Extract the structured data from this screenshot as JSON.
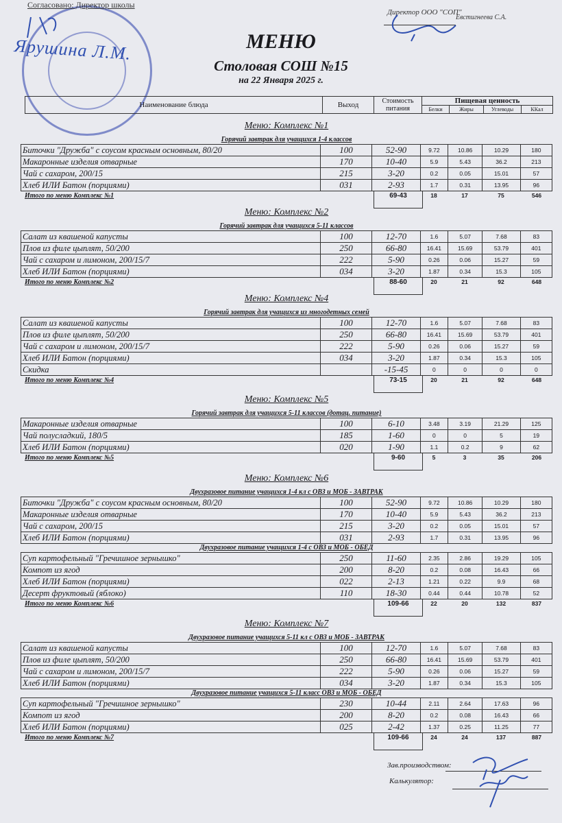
{
  "header": {
    "agreed": "Согласовано: Директор школы",
    "agreed_signature": "Ярушина Л.М.",
    "approved_by": "Директор ООО \"СОП\"",
    "approver_name": "Евстигнеева С.А.",
    "title": "МЕНЮ",
    "subtitle": "Столовая СОШ №15",
    "date": "на 22 Января 2025 г."
  },
  "columns": {
    "name": "Наименование блюда",
    "output": "Выход",
    "cost": "Стоимость питания",
    "nutrition": "Пищевая ценность",
    "protein": "Белки",
    "fat": "Жиры",
    "carbs": "Углеводы",
    "kcal": "ККал"
  },
  "sections": [
    {
      "title": "Меню: Комплекс №1",
      "groups": [
        {
          "subtitle": "Горячий завтрак для учащихся 1-4 классов",
          "rows": [
            [
              "Биточки  \"Дружба\" с соусом красным основным, 80/20",
              "100",
              "52-90",
              "9.72",
              "10.86",
              "10.29",
              "180"
            ],
            [
              "Макаронные изделия отварные",
              "170",
              "10-40",
              "5.9",
              "5.43",
              "36.2",
              "213"
            ],
            [
              "Чай с сахаром, 200/15",
              "215",
              "3-20",
              "0.2",
              "0.05",
              "15.01",
              "57"
            ],
            [
              "Хлеб ИЛИ Батон (порциями)",
              "031",
              "2-93",
              "1.7",
              "0.31",
              "13.95",
              "96"
            ]
          ]
        }
      ],
      "total": {
        "label": "Итого по меню Комплекс №1",
        "cost": "69-43",
        "protein": "18",
        "fat": "17",
        "carbs": "75",
        "kcal": "546"
      }
    },
    {
      "title": "Меню: Комплекс №2",
      "groups": [
        {
          "subtitle": "Горячий завтрак для учащихся 5-11 классов",
          "rows": [
            [
              "Салат из квашеной капусты",
              "100",
              "12-70",
              "1.6",
              "5.07",
              "7.68",
              "83"
            ],
            [
              "Плов из филе цыплят, 50/200",
              "250",
              "66-80",
              "16.41",
              "15.69",
              "53.79",
              "401"
            ],
            [
              "Чай с сахаром и лимоном, 200/15/7",
              "222",
              "5-90",
              "0.26",
              "0.06",
              "15.27",
              "59"
            ],
            [
              "Хлеб ИЛИ Батон (порциями)",
              "034",
              "3-20",
              "1.87",
              "0.34",
              "15.3",
              "105"
            ]
          ]
        }
      ],
      "total": {
        "label": "Итого по меню Комплекс №2",
        "cost": "88-60",
        "protein": "20",
        "fat": "21",
        "carbs": "92",
        "kcal": "648"
      }
    },
    {
      "title": "Меню: Комплекс №4",
      "groups": [
        {
          "subtitle": "Горячий завтрак для учащихся из многодетных семей",
          "rows": [
            [
              "Салат из квашеной капусты",
              "100",
              "12-70",
              "1.6",
              "5.07",
              "7.68",
              "83"
            ],
            [
              "Плов из филе цыплят, 50/200",
              "250",
              "66-80",
              "16.41",
              "15.69",
              "53.79",
              "401"
            ],
            [
              "Чай с сахаром и лимоном, 200/15/7",
              "222",
              "5-90",
              "0.26",
              "0.06",
              "15.27",
              "59"
            ],
            [
              "Хлеб ИЛИ Батон (порциями)",
              "034",
              "3-20",
              "1.87",
              "0.34",
              "15.3",
              "105"
            ],
            [
              "Скидка",
              "",
              "-15-45",
              "0",
              "0",
              "0",
              "0"
            ]
          ]
        }
      ],
      "total": {
        "label": "Итого по меню Комплекс №4",
        "cost": "73-15",
        "protein": "20",
        "fat": "21",
        "carbs": "92",
        "kcal": "648"
      }
    },
    {
      "title": "Меню: Комплекс №5",
      "groups": [
        {
          "subtitle": "Горячий завтрак для учащихся 5-11 классов (дотац. питание)",
          "rows": [
            [
              "Макаронные изделия отварные",
              "100",
              "6-10",
              "3.48",
              "3.19",
              "21.29",
              "125"
            ],
            [
              "Чай полусладкий, 180/5",
              "185",
              "1-60",
              "0",
              "0",
              "5",
              "19"
            ],
            [
              "Хлеб ИЛИ Батон (порциями)",
              "020",
              "1-90",
              "1.1",
              "0.2",
              "9",
              "62"
            ]
          ]
        }
      ],
      "total": {
        "label": "Итого по меню Комплекс №5",
        "cost": "9-60",
        "protein": "5",
        "fat": "3",
        "carbs": "35",
        "kcal": "206"
      }
    },
    {
      "title": "Меню: Комплекс №6",
      "groups": [
        {
          "subtitle": "Двухразовое питание учащихся 1-4 кл с ОВЗ и МОБ - ЗАВТРАК",
          "rows": [
            [
              "Биточки  \"Дружба\" с соусом красным основным, 80/20",
              "100",
              "52-90",
              "9.72",
              "10.86",
              "10.29",
              "180"
            ],
            [
              "Макаронные изделия отварные",
              "170",
              "10-40",
              "5.9",
              "5.43",
              "36.2",
              "213"
            ],
            [
              "Чай с сахаром, 200/15",
              "215",
              "3-20",
              "0.2",
              "0.05",
              "15.01",
              "57"
            ],
            [
              "Хлеб ИЛИ Батон (порциями)",
              "031",
              "2-93",
              "1.7",
              "0.31",
              "13.95",
              "96"
            ]
          ]
        },
        {
          "subtitle": "Двухразовое питание учащихся 1-4 с ОВЗ и МОБ - ОБЕД",
          "rows": [
            [
              "Суп картофельный \"Гречишное зернышко\"",
              "250",
              "11-60",
              "2.35",
              "2.86",
              "19.29",
              "105"
            ],
            [
              "Компот из  ягод",
              "200",
              "8-20",
              "0.2",
              "0.08",
              "16.43",
              "66"
            ],
            [
              "Хлеб ИЛИ Батон (порциями)",
              "022",
              "2-13",
              "1.21",
              "0.22",
              "9.9",
              "68"
            ],
            [
              "Десерт фруктовый (яблоко)",
              "110",
              "18-30",
              "0.44",
              "0.44",
              "10.78",
              "52"
            ]
          ]
        }
      ],
      "total": {
        "label": "Итого по меню Комплекс №6",
        "cost": "109-66",
        "protein": "22",
        "fat": "20",
        "carbs": "132",
        "kcal": "837"
      }
    },
    {
      "title": "Меню: Комплекс №7",
      "groups": [
        {
          "subtitle": "Двухразовое питание учащихся 5-11 кл с  ОВЗ и МОБ - ЗАВТРАК",
          "rows": [
            [
              "Салат из квашеной капусты",
              "100",
              "12-70",
              "1.6",
              "5.07",
              "7.68",
              "83"
            ],
            [
              "Плов из филе цыплят, 50/200",
              "250",
              "66-80",
              "16.41",
              "15.69",
              "53.79",
              "401"
            ],
            [
              "Чай с сахаром и лимоном, 200/15/7",
              "222",
              "5-90",
              "0.26",
              "0.06",
              "15.27",
              "59"
            ],
            [
              "Хлеб ИЛИ Батон (порциями)",
              "034",
              "3-20",
              "1.87",
              "0.34",
              "15.3",
              "105"
            ]
          ]
        },
        {
          "subtitle": "Двухразовое питание учащихся 5-11 класс ОВЗ и МОБ - ОБЕД",
          "rows": [
            [
              "Суп картофельный \"Гречишное зернышко\"",
              "230",
              "10-44",
              "2.11",
              "2.64",
              "17.63",
              "96"
            ],
            [
              "Компот из  ягод",
              "200",
              "8-20",
              "0.2",
              "0.08",
              "16.43",
              "66"
            ],
            [
              "Хлеб ИЛИ Батон (порциями)",
              "025",
              "2-42",
              "1.37",
              "0.25",
              "11.25",
              "77"
            ]
          ]
        }
      ],
      "total": {
        "label": "Итого по меню Комплекс №7",
        "cost": "109-66",
        "protein": "24",
        "fat": "24",
        "carbs": "137",
        "kcal": "887"
      }
    }
  ],
  "footer": {
    "production_head": "Зав.производством:",
    "calculator": "Калькулятор:"
  },
  "colors": {
    "paper": "#e9eaef",
    "ink": "#1a1a1e",
    "stamp": "#2c3caa",
    "signature": "#3050b0"
  }
}
